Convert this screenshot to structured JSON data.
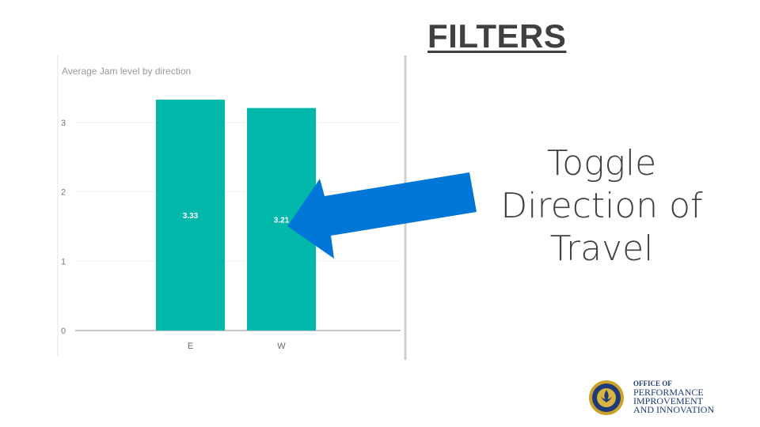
{
  "slide": {
    "heading": "FILTERS",
    "callout_lines": [
      "Toggle",
      "Direction of",
      "Travel"
    ],
    "arrow_color": "#0077D6",
    "logo": {
      "lines": [
        "OFFICE OF",
        "PERFORMANCE",
        "IMPROVEMENT",
        "AND INNOVATION"
      ],
      "seal_text": "LOUISVILLE"
    }
  },
  "chart_data": {
    "type": "bar",
    "title": "Average Jam level by direction",
    "categories": [
      "E",
      "W"
    ],
    "values": [
      3.33,
      3.21
    ],
    "data_labels": [
      "3.33",
      "3.21"
    ],
    "ylim": [
      0,
      3.5
    ],
    "yticks": [
      "0",
      "1",
      "2",
      "3"
    ],
    "grid": true,
    "bar_color": "#01B8AA",
    "xlabel": "",
    "ylabel": ""
  }
}
